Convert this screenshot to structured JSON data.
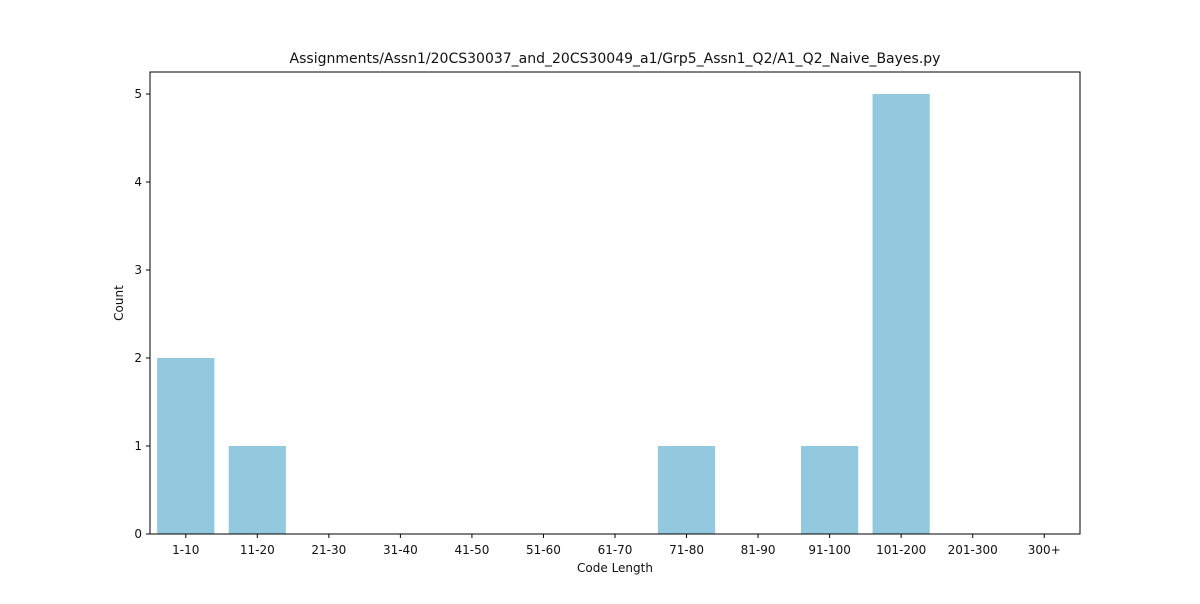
{
  "chart_data": {
    "type": "bar",
    "title": "Assignments/Assn1/20CS30037_and_20CS30049_a1/Grp5_Assn1_Q2/A1_Q2_Naive_Bayes.py",
    "xlabel": "Code Length",
    "ylabel": "Count",
    "categories": [
      "1-10",
      "11-20",
      "21-30",
      "31-40",
      "41-50",
      "51-60",
      "61-70",
      "71-80",
      "81-90",
      "91-100",
      "101-200",
      "201-300",
      "300+"
    ],
    "values": [
      2,
      1,
      0,
      0,
      0,
      0,
      0,
      1,
      0,
      1,
      5,
      0,
      0
    ],
    "yticks": [
      0,
      1,
      2,
      3,
      4,
      5
    ],
    "ylim": [
      0,
      5.25
    ],
    "bar_color": "#92c9df",
    "grid": false,
    "legend": "none"
  }
}
